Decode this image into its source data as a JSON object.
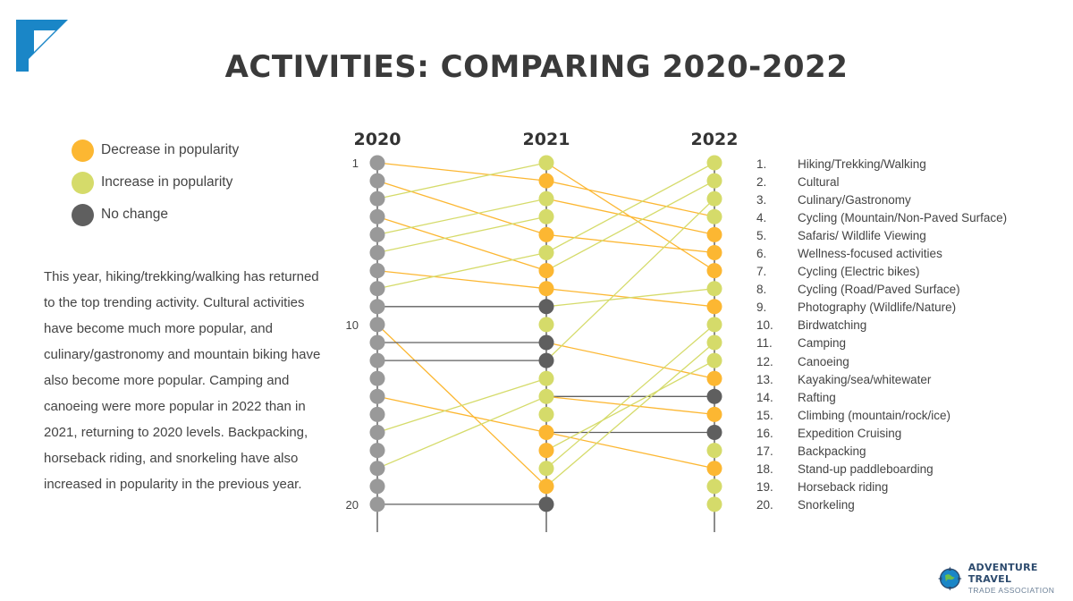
{
  "title": "ACTIVITIES: COMPARING 2020-2022",
  "legend": [
    {
      "label": "Decrease in popularity",
      "color": "#FCB732"
    },
    {
      "label": "Increase in popularity",
      "color": "#D5DB6A"
    },
    {
      "label": "No change",
      "color": "#5F5F5F"
    }
  ],
  "body_text": "This year, hiking/trekking/walking has returned to the top trending activity. Cultural activities have become much more popular, and culinary/gastronomy and mountain biking have also become more popular. Camping and canoeing were more popular in 2022 than in 2021, returning to 2020 levels. Backpacking, horseback riding, and snorkeling have also increased in popularity in the previous year.",
  "footer": {
    "brand": "ADVENTURE TRAVEL",
    "sub": "TRADE ASSOCIATION"
  },
  "activity_list": [
    {
      "num": "1.",
      "name": "Hiking/Trekking/Walking"
    },
    {
      "num": "2.",
      "name": "Cultural"
    },
    {
      "num": "3.",
      "name": "Culinary/Gastronomy"
    },
    {
      "num": "4.",
      "name": "Cycling (Mountain/Non-Paved Surface)"
    },
    {
      "num": "5.",
      "name": "Safaris/ Wildlife Viewing"
    },
    {
      "num": "6.",
      "name": "Wellness-focused activities"
    },
    {
      "num": "7.",
      "name": "Cycling (Electric bikes)"
    },
    {
      "num": "8.",
      "name": "Cycling (Road/Paved Surface)"
    },
    {
      "num": "9.",
      "name": "Photography (Wildlife/Nature)"
    },
    {
      "num": "10.",
      "name": "Birdwatching"
    },
    {
      "num": "11.",
      "name": "Camping"
    },
    {
      "num": "12.",
      "name": "Canoeing"
    },
    {
      "num": "13.",
      "name": "Kayaking/sea/whitewater"
    },
    {
      "num": "14.",
      "name": "Rafting"
    },
    {
      "num": "15.",
      "name": "Climbing (mountain/rock/ice)"
    },
    {
      "num": "16.",
      "name": "Expedition Cruising"
    },
    {
      "num": "17.",
      "name": "Backpacking"
    },
    {
      "num": "18.",
      "name": "Stand-up paddleboarding"
    },
    {
      "num": "19.",
      "name": "Horseback riding"
    },
    {
      "num": "20.",
      "name": "Snorkeling"
    }
  ],
  "chart_data": {
    "type": "slope",
    "years": [
      "2020",
      "2021",
      "2022"
    ],
    "rank_axis_labels": [
      "1",
      "10",
      "20"
    ],
    "colors": {
      "2020": "#999999",
      "decrease": "#FCB732",
      "increase": "#D5DB6A",
      "no_change": "#5F5F5F"
    },
    "dots_2021": [
      "increase",
      "decrease",
      "increase",
      "increase",
      "decrease",
      "increase",
      "decrease",
      "decrease",
      "no_change",
      "increase",
      "no_change",
      "no_change",
      "increase",
      "increase",
      "increase",
      "decrease",
      "decrease",
      "increase",
      "decrease",
      "no_change"
    ],
    "dots_2022": [
      "increase",
      "increase",
      "increase",
      "increase",
      "decrease",
      "decrease",
      "decrease",
      "increase",
      "decrease",
      "increase",
      "increase",
      "increase",
      "decrease",
      "no_change",
      "decrease",
      "no_change",
      "increase",
      "decrease",
      "increase",
      "increase"
    ],
    "links_2020_2021": [
      {
        "from": 1,
        "to": 2,
        "change": "decrease"
      },
      {
        "from": 2,
        "to": 5,
        "change": "decrease"
      },
      {
        "from": 3,
        "to": 1,
        "change": "increase"
      },
      {
        "from": 4,
        "to": 7,
        "change": "decrease"
      },
      {
        "from": 5,
        "to": 3,
        "change": "increase"
      },
      {
        "from": 6,
        "to": 4,
        "change": "increase"
      },
      {
        "from": 7,
        "to": 8,
        "change": "decrease"
      },
      {
        "from": 8,
        "to": 6,
        "change": "increase"
      },
      {
        "from": 9,
        "to": 9,
        "change": "no_change"
      },
      {
        "from": 10,
        "to": 19,
        "change": "decrease"
      },
      {
        "from": 11,
        "to": 11,
        "change": "no_change"
      },
      {
        "from": 12,
        "to": 12,
        "change": "no_change"
      },
      {
        "from": 14,
        "to": 16,
        "change": "decrease"
      },
      {
        "from": 16,
        "to": 13,
        "change": "increase"
      },
      {
        "from": 18,
        "to": 14,
        "change": "increase"
      },
      {
        "from": 20,
        "to": 20,
        "change": "no_change"
      }
    ],
    "links_2021_2022": [
      {
        "from": 1,
        "to": 7,
        "change": "decrease"
      },
      {
        "from": 2,
        "to": 4,
        "change": "decrease"
      },
      {
        "from": 3,
        "to": 5,
        "change": "decrease"
      },
      {
        "from": 5,
        "to": 6,
        "change": "decrease"
      },
      {
        "from": 6,
        "to": 1,
        "change": "increase"
      },
      {
        "from": 7,
        "to": 2,
        "change": "increase"
      },
      {
        "from": 8,
        "to": 9,
        "change": "decrease"
      },
      {
        "from": 9,
        "to": 8,
        "change": "increase"
      },
      {
        "from": 11,
        "to": 13,
        "change": "decrease"
      },
      {
        "from": 12,
        "to": 3,
        "change": "increase"
      },
      {
        "from": 14,
        "to": 14,
        "change": "no_change"
      },
      {
        "from": 14,
        "to": 15,
        "change": "decrease"
      },
      {
        "from": 16,
        "to": 16,
        "change": "no_change"
      },
      {
        "from": 16,
        "to": 18,
        "change": "decrease"
      },
      {
        "from": 17,
        "to": 12,
        "change": "increase"
      },
      {
        "from": 18,
        "to": 10,
        "change": "increase"
      },
      {
        "from": 19,
        "to": 11,
        "change": "increase"
      }
    ]
  }
}
